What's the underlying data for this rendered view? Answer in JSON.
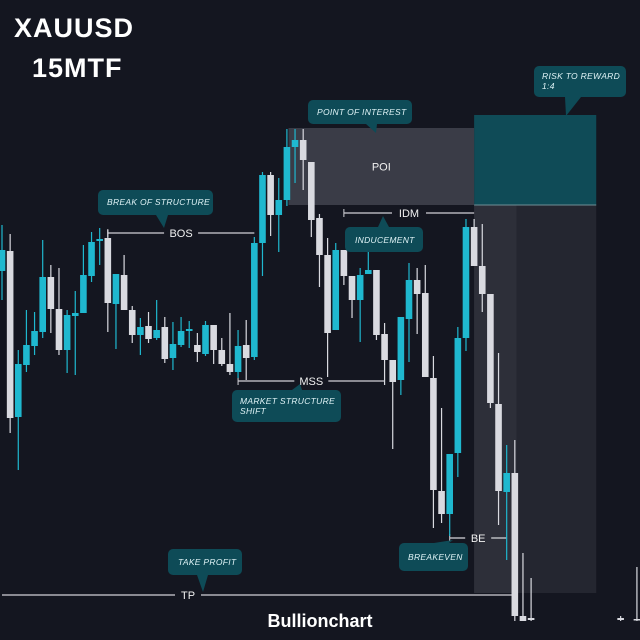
{
  "header": {
    "symbol": "XAUUSD",
    "timeframe": "15MTF"
  },
  "brand": "Bullionchart",
  "colors": {
    "background": "#141620",
    "bullish": "#1fb8cf",
    "bearish": "#d9dae0",
    "callout": "#0e4b57",
    "poi_zone": "#3a3c47",
    "reward_zone": "#0f4b57",
    "risk_zone": "#242630",
    "risk_zone_entry": "#2d2f39",
    "level_line": "#d0d0d5"
  },
  "chart_data": {
    "type": "candlestick",
    "title": "",
    "xlabel": "",
    "ylabel": "",
    "axes_visible": false,
    "grid": false,
    "candle_format": [
      "open",
      "high",
      "low",
      "close"
    ],
    "candles": [
      [
        75.8,
        85,
        70,
        80
      ],
      [
        79.8,
        83.2,
        43.4,
        46.4
      ],
      [
        46.6,
        60,
        36,
        57.2
      ],
      [
        57,
        68,
        55.6,
        61
      ],
      [
        60.8,
        67.6,
        59,
        63.8
      ],
      [
        63.6,
        82,
        62.4,
        74.6
      ],
      [
        74.6,
        77,
        63.4,
        68.2
      ],
      [
        68.2,
        76.4,
        59,
        60
      ],
      [
        60,
        68,
        55.4,
        67
      ],
      [
        66.8,
        71.8,
        55,
        67.4
      ],
      [
        67.4,
        81,
        67.4,
        75
      ],
      [
        74.8,
        83.6,
        73.6,
        81.6
      ],
      [
        81.8,
        84.4,
        77,
        82.2
      ],
      [
        82.4,
        84,
        63.6,
        69.4
      ],
      [
        69.2,
        75.2,
        60.2,
        75.2
      ],
      [
        75,
        79,
        68,
        68
      ],
      [
        68,
        68.8,
        61.4,
        63
      ],
      [
        63,
        66.4,
        59,
        64.6
      ],
      [
        64.8,
        67.6,
        61.4,
        62.2
      ],
      [
        62.4,
        70,
        62,
        64
      ],
      [
        64.6,
        66.6,
        57.4,
        58.2
      ],
      [
        58.4,
        65.6,
        56,
        61.2
      ],
      [
        61,
        66.6,
        60.6,
        63.8
      ],
      [
        63.8,
        65.8,
        60.4,
        64.2
      ],
      [
        61,
        63.4,
        57.6,
        59.6
      ],
      [
        59.2,
        65.8,
        58.8,
        65
      ],
      [
        65,
        65,
        57.2,
        60
      ],
      [
        60,
        62.4,
        56.8,
        57.2
      ],
      [
        57.2,
        67.4,
        55,
        55.6
      ],
      [
        55.6,
        64,
        54.4,
        60.8
      ],
      [
        61,
        66,
        54,
        58.4
      ],
      [
        58.6,
        82.6,
        58,
        81.4
      ],
      [
        81.4,
        95.6,
        74.8,
        95
      ],
      [
        95,
        95.6,
        82.8,
        87
      ],
      [
        87,
        94.4,
        79.6,
        90
      ],
      [
        90,
        104.2,
        88.8,
        100.6
      ],
      [
        100.6,
        104.2,
        93.4,
        102
      ],
      [
        102,
        104.2,
        92,
        98
      ],
      [
        97.6,
        97.6,
        82.6,
        86
      ],
      [
        86.4,
        87.2,
        72.6,
        79
      ],
      [
        79,
        82.4,
        54.6,
        63.4
      ],
      [
        64,
        81.4,
        64,
        80
      ],
      [
        80,
        80,
        73,
        74.8
      ],
      [
        74.8,
        74.8,
        66.4,
        70
      ],
      [
        70,
        76.4,
        61.6,
        75
      ],
      [
        75.2,
        81.4,
        75.2,
        76
      ],
      [
        76,
        76,
        62,
        63
      ],
      [
        63.2,
        65.4,
        53,
        58
      ],
      [
        58,
        58,
        40.2,
        53.6
      ],
      [
        54,
        66.6,
        51,
        66.6
      ],
      [
        66.2,
        77.4,
        57.6,
        74
      ],
      [
        74,
        76.4,
        63.2,
        71.2
      ],
      [
        71.4,
        77,
        54.6,
        54.6
      ],
      [
        54.4,
        58.8,
        24.4,
        32
      ],
      [
        31.8,
        48.4,
        25.4,
        27.2
      ],
      [
        27.2,
        39.2,
        22.8,
        39.2
      ],
      [
        39.4,
        64.6,
        34.6,
        62.4
      ],
      [
        62.4,
        86.2,
        59.8,
        84.6
      ],
      [
        84.6,
        86.2,
        76.8,
        76.8
      ],
      [
        76.8,
        85.2,
        67.6,
        71.2
      ],
      [
        71.2,
        71.2,
        48.4,
        49.4
      ],
      [
        49.2,
        59.4,
        25,
        31.8
      ],
      [
        31.6,
        41,
        18,
        35.4
      ],
      [
        35.4,
        42,
        5.8,
        6.8
      ],
      [
        6.8,
        19.4,
        5.8,
        5.8
      ],
      [
        6.4,
        14.4,
        5.8,
        6
      ],
      null,
      null,
      null,
      null,
      null,
      null,
      null,
      null,
      null,
      null,
      [
        6.4,
        6.8,
        5.8,
        6
      ],
      null,
      [
        6.2,
        16.6,
        5.8,
        6
      ]
    ],
    "levels": [
      {
        "label": "BOS",
        "price": 83.4,
        "from": 13,
        "to": 31
      },
      {
        "label": "MSS",
        "price": 53.8,
        "from": 29,
        "to": 47
      },
      {
        "label": "IDM",
        "price": 87.4,
        "from": 42,
        "to": 58
      },
      {
        "label": "BE",
        "price": 22.4,
        "from": 55,
        "to": 62
      },
      {
        "label": "TP",
        "price": 11,
        "from": 0,
        "to": 63
      }
    ],
    "zones": {
      "poi": {
        "label": "POI",
        "top": 104.4,
        "bottom": 89,
        "from": 35.2,
        "to": 58
      },
      "reward": {
        "top": 107,
        "bottom": 89,
        "from": 58,
        "to": 73
      },
      "risk": {
        "top": 89,
        "bottom": 11.4,
        "from": 58,
        "to": 73
      },
      "risk_entry": {
        "top": 89,
        "bottom": 11.4,
        "from": 58,
        "to": 63.2
      }
    },
    "annotations": {
      "risk_reward": [
        "RISK TO REWARD",
        "1:4"
      ],
      "poi": [
        "POINT OF INTEREST"
      ],
      "bos": [
        "BREAK OF STRUCTURE"
      ],
      "idm": [
        "INDUCEMENT"
      ],
      "mss": [
        "MARKET STRUCTURE",
        "SHIFT"
      ],
      "be": [
        "BREAKEVEN"
      ],
      "tp": [
        "TAKE PROFIT"
      ]
    }
  }
}
